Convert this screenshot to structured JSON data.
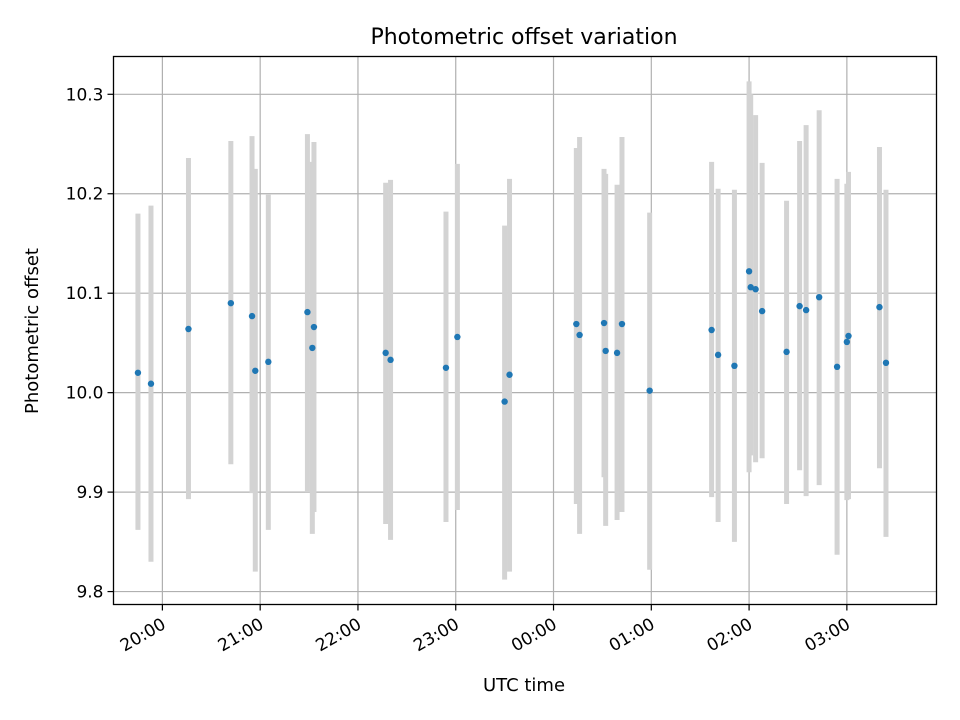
{
  "chart_data": {
    "type": "scatter",
    "title": "Photometric offset variation",
    "xlabel": "UTC time",
    "ylabel": "Photometric offset",
    "x_unit": "hours after 20:00 UTC",
    "xlim": [
      "19:30",
      "03:55"
    ],
    "ylim": [
      9.787,
      10.338
    ],
    "grid": true,
    "x_tick_labels": [
      "20:00",
      "21:00",
      "22:00",
      "23:00",
      "00:00",
      "01:00",
      "02:00",
      "03:00"
    ],
    "y_tick_labels": [
      "9.8",
      "9.9",
      "10.0",
      "10.1",
      "10.2",
      "10.3"
    ],
    "y_ticks": [
      9.8,
      9.9,
      10.0,
      10.1,
      10.2,
      10.3
    ],
    "colors": {
      "point": "#1f77b4",
      "errorbar": "#d3d3d3",
      "grid": "#b0b0b0"
    },
    "series": [
      {
        "points": [
          {
            "x": "19:45",
            "y": 10.02,
            "ylow": 9.862,
            "yhigh": 10.18
          },
          {
            "x": "19:53",
            "y": 10.009,
            "ylow": 9.83,
            "yhigh": 10.188
          },
          {
            "x": "20:16",
            "y": 10.064,
            "ylow": 9.893,
            "yhigh": 10.236
          },
          {
            "x": "20:42",
            "y": 10.09,
            "ylow": 9.928,
            "yhigh": 10.253
          },
          {
            "x": "20:55",
            "y": 10.077,
            "ylow": 9.899,
            "yhigh": 10.258
          },
          {
            "x": "20:57",
            "y": 10.022,
            "ylow": 9.82,
            "yhigh": 10.225
          },
          {
            "x": "21:05",
            "y": 10.031,
            "ylow": 9.862,
            "yhigh": 10.199
          },
          {
            "x": "21:29",
            "y": 10.081,
            "ylow": 9.9,
            "yhigh": 10.26
          },
          {
            "x": "21:32",
            "y": 10.045,
            "ylow": 9.858,
            "yhigh": 10.232
          },
          {
            "x": "21:33",
            "y": 10.066,
            "ylow": 9.88,
            "yhigh": 10.252
          },
          {
            "x": "22:17",
            "y": 10.04,
            "ylow": 9.868,
            "yhigh": 10.211
          },
          {
            "x": "22:20",
            "y": 10.033,
            "ylow": 9.852,
            "yhigh": 10.214
          },
          {
            "x": "22:54",
            "y": 10.025,
            "ylow": 9.87,
            "yhigh": 10.182
          },
          {
            "x": "23:01",
            "y": 10.056,
            "ylow": 9.882,
            "yhigh": 10.23
          },
          {
            "x": "23:30",
            "y": 9.991,
            "ylow": 9.812,
            "yhigh": 10.168
          },
          {
            "x": "23:33",
            "y": 10.018,
            "ylow": 9.82,
            "yhigh": 10.215
          },
          {
            "x": "00:14",
            "y": 10.069,
            "ylow": 9.888,
            "yhigh": 10.246
          },
          {
            "x": "00:16",
            "y": 10.058,
            "ylow": 9.858,
            "yhigh": 10.257
          },
          {
            "x": "00:31",
            "y": 10.07,
            "ylow": 9.915,
            "yhigh": 10.225
          },
          {
            "x": "00:32",
            "y": 10.042,
            "ylow": 9.866,
            "yhigh": 10.22
          },
          {
            "x": "00:39",
            "y": 10.04,
            "ylow": 9.872,
            "yhigh": 10.209
          },
          {
            "x": "00:42",
            "y": 10.069,
            "ylow": 9.88,
            "yhigh": 10.257
          },
          {
            "x": "00:59",
            "y": 10.002,
            "ylow": 9.822,
            "yhigh": 10.181
          },
          {
            "x": "01:37",
            "y": 10.063,
            "ylow": 9.895,
            "yhigh": 10.232
          },
          {
            "x": "01:41",
            "y": 10.038,
            "ylow": 9.87,
            "yhigh": 10.205
          },
          {
            "x": "01:51",
            "y": 10.027,
            "ylow": 9.85,
            "yhigh": 10.204
          },
          {
            "x": "02:00",
            "y": 10.122,
            "ylow": 9.92,
            "yhigh": 10.313
          },
          {
            "x": "02:01",
            "y": 10.106,
            "ylow": 9.937,
            "yhigh": 10.3
          },
          {
            "x": "02:04",
            "y": 10.104,
            "ylow": 9.93,
            "yhigh": 10.279
          },
          {
            "x": "02:08",
            "y": 10.082,
            "ylow": 9.934,
            "yhigh": 10.231
          },
          {
            "x": "02:23",
            "y": 10.041,
            "ylow": 9.888,
            "yhigh": 10.193
          },
          {
            "x": "02:31",
            "y": 10.087,
            "ylow": 9.922,
            "yhigh": 10.253
          },
          {
            "x": "02:35",
            "y": 10.083,
            "ylow": 9.896,
            "yhigh": 10.269
          },
          {
            "x": "02:43",
            "y": 10.096,
            "ylow": 9.907,
            "yhigh": 10.284
          },
          {
            "x": "02:54",
            "y": 10.026,
            "ylow": 9.837,
            "yhigh": 10.215
          },
          {
            "x": "03:00",
            "y": 10.051,
            "ylow": 9.892,
            "yhigh": 10.21
          },
          {
            "x": "03:01",
            "y": 10.057,
            "ylow": 9.893,
            "yhigh": 10.222
          },
          {
            "x": "03:20",
            "y": 10.086,
            "ylow": 9.924,
            "yhigh": 10.247
          },
          {
            "x": "03:24",
            "y": 10.03,
            "ylow": 9.855,
            "yhigh": 10.204
          }
        ]
      }
    ]
  }
}
